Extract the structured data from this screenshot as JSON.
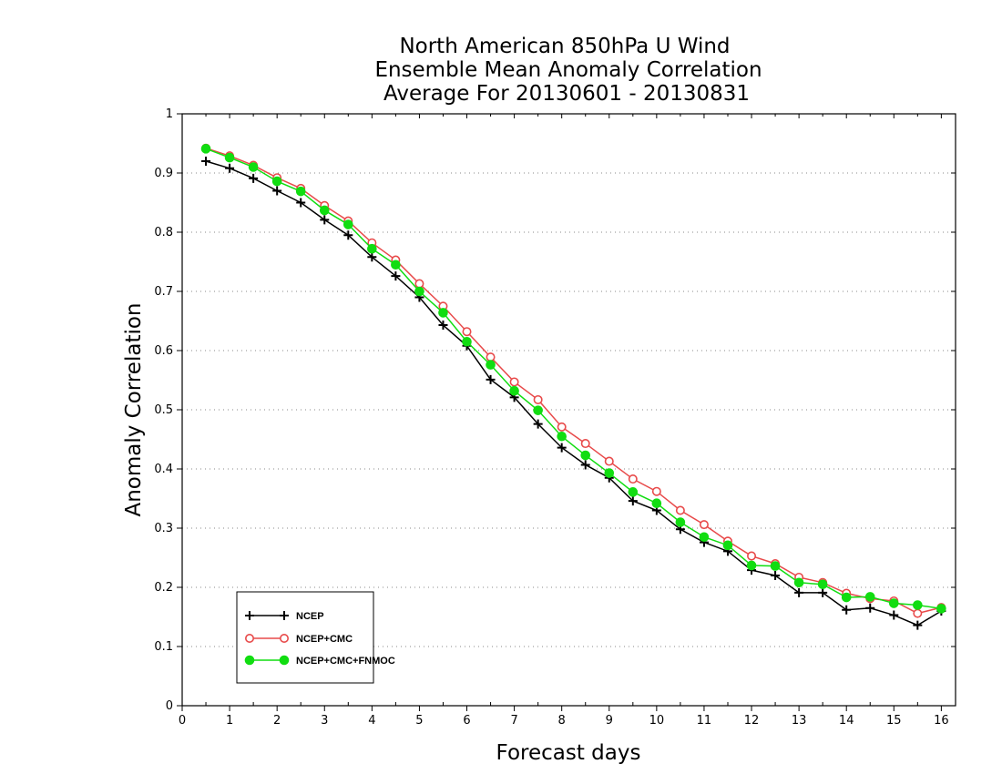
{
  "chart_data": {
    "type": "line",
    "title": [
      "North American 850hPa U Wind",
      "Ensemble Mean Anomaly Correlation",
      "Average For 20130601 - 20130831"
    ],
    "xlabel": "Forecast days",
    "ylabel": "Anomaly Correlation",
    "xlim": [
      0,
      16.3
    ],
    "ylim": [
      0,
      1
    ],
    "x_ticks": [
      0,
      1,
      2,
      3,
      4,
      5,
      6,
      7,
      8,
      9,
      10,
      11,
      12,
      13,
      14,
      15,
      16
    ],
    "y_ticks": [
      0,
      0.1,
      0.2,
      0.3,
      0.4,
      0.5,
      0.6,
      0.7,
      0.8,
      0.9,
      1
    ],
    "y_tick_labels": [
      "0",
      "0.1",
      "0.2",
      "0.3",
      "0.4",
      "0.5",
      "0.6",
      "0.7",
      "0.8",
      "0.9",
      "1"
    ],
    "grid": "horizontal dotted",
    "legend_position": "bottom-left",
    "x": [
      0.5,
      1,
      1.5,
      2,
      2.5,
      3,
      3.5,
      4,
      4.5,
      5,
      5.5,
      6,
      6.5,
      7,
      7.5,
      8,
      8.5,
      9,
      9.5,
      10,
      10.5,
      11,
      11.5,
      12,
      12.5,
      13,
      13.5,
      14,
      14.5,
      15,
      15.5,
      16
    ],
    "series": [
      {
        "name": "NCEP",
        "color": "#000000",
        "marker": "plus",
        "values": [
          0.92,
          0.908,
          0.891,
          0.87,
          0.85,
          0.821,
          0.795,
          0.758,
          0.726,
          0.69,
          0.643,
          0.608,
          0.551,
          0.521,
          0.476,
          0.436,
          0.407,
          0.385,
          0.346,
          0.33,
          0.298,
          0.276,
          0.261,
          0.229,
          0.22,
          0.191,
          0.191,
          0.162,
          0.165,
          0.153,
          0.136,
          0.16
        ]
      },
      {
        "name": "NCEP+CMC",
        "color": "#e84a4a",
        "marker": "open-circle",
        "values": [
          0.942,
          0.929,
          0.913,
          0.892,
          0.874,
          0.845,
          0.819,
          0.782,
          0.753,
          0.713,
          0.675,
          0.632,
          0.589,
          0.547,
          0.517,
          0.471,
          0.443,
          0.413,
          0.383,
          0.362,
          0.33,
          0.306,
          0.278,
          0.253,
          0.24,
          0.217,
          0.208,
          0.19,
          0.181,
          0.177,
          0.156,
          0.166
        ]
      },
      {
        "name": "NCEP+CMC+FNMOC",
        "color": "#11dd11",
        "marker": "filled-circle",
        "values": [
          0.941,
          0.926,
          0.91,
          0.886,
          0.869,
          0.837,
          0.813,
          0.772,
          0.745,
          0.7,
          0.664,
          0.615,
          0.576,
          0.532,
          0.499,
          0.455,
          0.423,
          0.393,
          0.361,
          0.342,
          0.31,
          0.285,
          0.271,
          0.237,
          0.236,
          0.208,
          0.205,
          0.183,
          0.184,
          0.173,
          0.17,
          0.164
        ]
      }
    ]
  }
}
